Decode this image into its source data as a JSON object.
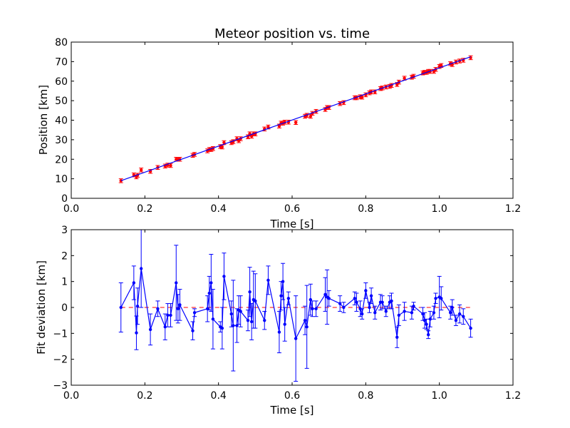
{
  "chart_data": [
    {
      "type": "scatter",
      "title": "Meteor position vs. time",
      "xlabel": "Time [s]",
      "ylabel": "Position [km]",
      "xlim": [
        0.0,
        1.2
      ],
      "ylim": [
        0,
        80
      ],
      "xticks": [
        "0.0",
        "0.2",
        "0.4",
        "0.6",
        "0.8",
        "1.0",
        "1.2"
      ],
      "yticks": [
        "0",
        "10",
        "20",
        "30",
        "40",
        "50",
        "60",
        "70",
        "80"
      ],
      "grid": false,
      "fit_line": {
        "x": [
          0.135,
          1.085
        ],
        "y": [
          9.0,
          72.5
        ]
      },
      "series": [
        {
          "style": "red points with error bars",
          "x": [
            0.135,
            0.17,
            0.177,
            0.18,
            0.19,
            0.215,
            0.235,
            0.255,
            0.262,
            0.27,
            0.285,
            0.29,
            0.295,
            0.33,
            0.335,
            0.37,
            0.375,
            0.38,
            0.385,
            0.405,
            0.41,
            0.415,
            0.435,
            0.44,
            0.45,
            0.455,
            0.46,
            0.48,
            0.485,
            0.49,
            0.495,
            0.5,
            0.525,
            0.535,
            0.565,
            0.57,
            0.575,
            0.58,
            0.59,
            0.61,
            0.635,
            0.64,
            0.65,
            0.655,
            0.665,
            0.69,
            0.695,
            0.7,
            0.73,
            0.74,
            0.77,
            0.775,
            0.785,
            0.79,
            0.8,
            0.81,
            0.815,
            0.825,
            0.84,
            0.845,
            0.855,
            0.865,
            0.87,
            0.885,
            0.89,
            0.905,
            0.925,
            0.93,
            0.955,
            0.96,
            0.965,
            0.97,
            0.975,
            0.985,
            0.99,
            1.0,
            1.005,
            1.03,
            1.035,
            1.045,
            1.055,
            1.065,
            1.085
          ],
          "y": [
            9,
            12,
            11,
            11.8,
            14.5,
            13.8,
            15.8,
            16.5,
            17,
            16.8,
            20,
            20,
            20,
            22,
            22.5,
            24.3,
            25,
            25,
            25.5,
            26.5,
            26.3,
            28.5,
            28.5,
            29,
            30.5,
            29.5,
            30.5,
            31.5,
            33,
            31.8,
            33,
            33,
            35.5,
            36.5,
            37,
            38.5,
            38.5,
            39,
            39,
            38.8,
            42,
            42.5,
            42,
            43.5,
            44.5,
            45.5,
            46.5,
            46.5,
            48.5,
            49,
            51.5,
            51.5,
            52,
            51.8,
            53,
            54,
            54.5,
            54.5,
            56.2,
            56.5,
            57,
            57.3,
            57.8,
            58.3,
            59.5,
            61.5,
            62,
            62.5,
            64.2,
            64.5,
            64.5,
            65,
            65,
            65,
            66,
            67.5,
            68,
            69,
            68.5,
            69.8,
            70.3,
            70.7,
            72
          ],
          "err": 1
        }
      ]
    },
    {
      "type": "line",
      "title": "",
      "xlabel": "Time [s]",
      "ylabel": "Fit deviation [km]",
      "xlim": [
        0.0,
        1.2
      ],
      "ylim": [
        -3,
        3
      ],
      "xticks": [
        "0.0",
        "0.2",
        "0.4",
        "0.6",
        "0.8",
        "1.0",
        "1.2"
      ],
      "yticks": [
        "−3",
        "−2",
        "−1",
        "0",
        "1",
        "2",
        "3"
      ],
      "grid": false,
      "reference_line": {
        "y": 0,
        "style": "red dashed"
      },
      "series": [
        {
          "style": "blue line with point markers and error bars",
          "x": [
            0.135,
            0.17,
            0.177,
            0.18,
            0.19,
            0.215,
            0.235,
            0.255,
            0.262,
            0.27,
            0.285,
            0.29,
            0.295,
            0.33,
            0.335,
            0.37,
            0.375,
            0.38,
            0.385,
            0.405,
            0.41,
            0.415,
            0.435,
            0.44,
            0.45,
            0.455,
            0.46,
            0.48,
            0.485,
            0.49,
            0.495,
            0.5,
            0.525,
            0.535,
            0.565,
            0.57,
            0.575,
            0.58,
            0.59,
            0.61,
            0.635,
            0.64,
            0.65,
            0.655,
            0.665,
            0.69,
            0.695,
            0.7,
            0.73,
            0.74,
            0.77,
            0.775,
            0.785,
            0.79,
            0.8,
            0.81,
            0.815,
            0.825,
            0.84,
            0.845,
            0.855,
            0.865,
            0.87,
            0.885,
            0.89,
            0.905,
            0.925,
            0.93,
            0.955,
            0.96,
            0.965,
            0.97,
            0.975,
            0.985,
            0.99,
            1.0,
            1.005,
            1.03,
            1.035,
            1.045,
            1.055,
            1.065,
            1.085
          ],
          "y": [
            0.0,
            0.95,
            -0.98,
            0.05,
            1.5,
            -0.85,
            -0.05,
            -0.75,
            -0.3,
            -0.3,
            0.95,
            -0.05,
            0.1,
            -0.9,
            -0.2,
            -0.05,
            0.55,
            0.95,
            -0.45,
            -0.75,
            -0.8,
            1.2,
            -0.25,
            -0.7,
            -0.7,
            -0.1,
            -0.15,
            -0.5,
            0.6,
            -0.55,
            0.3,
            0.25,
            -0.5,
            1.05,
            -0.95,
            0.45,
            1.0,
            -0.65,
            0.35,
            -1.2,
            -0.5,
            -0.75,
            0.3,
            -0.05,
            -0.05,
            0.5,
            0.4,
            0.35,
            0.15,
            0.0,
            0.35,
            0.2,
            -0.05,
            -0.25,
            0.65,
            0.0,
            0.45,
            -0.2,
            0.2,
            0.2,
            -0.15,
            0.2,
            0.25,
            -1.15,
            -0.3,
            -0.15,
            -0.2,
            0.05,
            -0.25,
            -0.5,
            -0.65,
            -1.05,
            -0.45,
            -0.2,
            0.35,
            0.4,
            0.35,
            -0.2,
            0.0,
            -0.5,
            -0.25,
            -0.35,
            -0.8
          ],
          "err": [
            0.95,
            0.65,
            0.65,
            0.7,
            1.5,
            0.6,
            0.3,
            0.5,
            0.45,
            0.45,
            1.45,
            0.55,
            0.6,
            0.35,
            0.15,
            0.5,
            0.65,
            1.1,
            1.15,
            0.2,
            0.8,
            0.9,
            0.5,
            1.75,
            0.65,
            0.55,
            0.6,
            0.4,
            0.95,
            0.7,
            1.1,
            1.05,
            0.35,
            0.55,
            0.8,
            0.55,
            0.7,
            0.65,
            0.25,
            1.65,
            0.55,
            1.6,
            0.6,
            0.3,
            0.3,
            0.65,
            1.05,
            0.3,
            0.3,
            0.2,
            0.25,
            0.35,
            0.3,
            0.2,
            0.3,
            0.2,
            0.3,
            0.25,
            0.3,
            0.25,
            0.2,
            0.25,
            0.3,
            0.4,
            0.4,
            0.35,
            0.25,
            0.15,
            0.25,
            0.3,
            0.2,
            0.15,
            0.3,
            0.25,
            0.2,
            0.8,
            0.45,
            0.25,
            0.3,
            0.2,
            0.35,
            0.3,
            0.35
          ]
        }
      ]
    }
  ],
  "colors": {
    "series": "#0000ff",
    "points": "#ff0000",
    "reference": "#ff0000",
    "axes": "#000000",
    "background": "#ffffff"
  }
}
